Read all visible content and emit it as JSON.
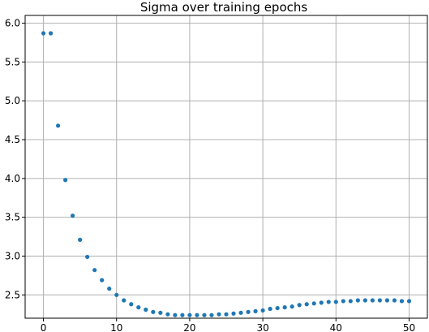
{
  "chart_data": {
    "type": "scatter",
    "title": "Sigma over training epochs",
    "xlabel": "",
    "ylabel": "",
    "xlim": [
      -2.5,
      52.5
    ],
    "ylim": [
      2.2,
      6.1
    ],
    "x_ticks": [
      0,
      10,
      20,
      30,
      40,
      50
    ],
    "y_ticks": [
      2.5,
      3.0,
      3.5,
      4.0,
      4.5,
      5.0,
      5.5,
      6.0
    ],
    "x_tick_labels": [
      "0",
      "10",
      "20",
      "30",
      "40",
      "50"
    ],
    "y_tick_labels": [
      "2.5",
      "3.0",
      "3.5",
      "4.0",
      "4.5",
      "5.0",
      "5.5",
      "6.0"
    ],
    "grid": true,
    "marker_color": "#1f77b4",
    "series": [
      {
        "x": [
          0,
          1,
          2,
          3,
          4,
          5,
          6,
          7,
          8,
          9,
          10,
          11,
          12,
          13,
          14,
          15,
          16,
          17,
          18,
          19,
          20,
          21,
          22,
          23,
          24,
          25,
          26,
          27,
          28,
          29,
          30,
          31,
          32,
          33,
          34,
          35,
          36,
          37,
          38,
          39,
          40,
          41,
          42,
          43,
          44,
          45,
          46,
          47,
          48,
          49,
          50
        ],
        "y": [
          5.87,
          5.87,
          4.68,
          3.98,
          3.52,
          3.21,
          2.99,
          2.82,
          2.69,
          2.58,
          2.5,
          2.43,
          2.38,
          2.34,
          2.31,
          2.28,
          2.27,
          2.25,
          2.24,
          2.24,
          2.24,
          2.24,
          2.24,
          2.24,
          2.25,
          2.25,
          2.26,
          2.27,
          2.28,
          2.29,
          2.3,
          2.32,
          2.33,
          2.34,
          2.35,
          2.37,
          2.38,
          2.39,
          2.4,
          2.41,
          2.41,
          2.42,
          2.42,
          2.43,
          2.43,
          2.43,
          2.43,
          2.43,
          2.43,
          2.42,
          2.42
        ]
      }
    ]
  }
}
